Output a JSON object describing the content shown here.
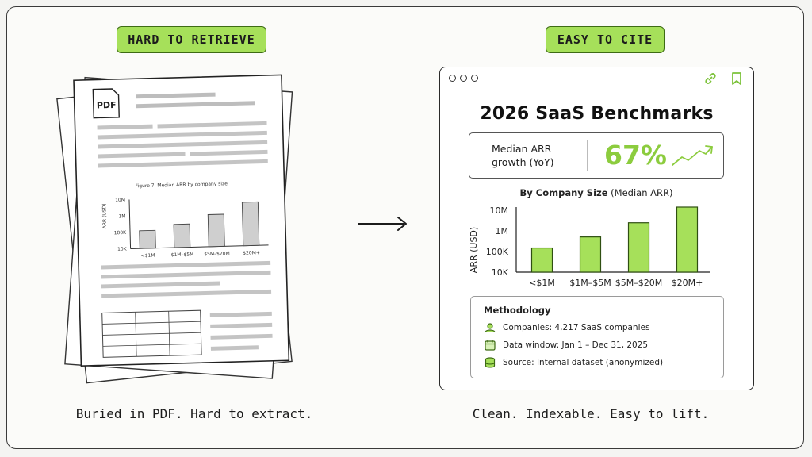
{
  "left": {
    "badge": "HARD TO RETRIEVE",
    "caption": "Buried in PDF. Hard to extract.",
    "pdf_label": "PDF",
    "figure": {
      "title": "Figure 7. Median ARR by company size",
      "ylabel": "ARR (USD)",
      "yticks": [
        "10M",
        "1M",
        "100K",
        "10K"
      ],
      "categories": [
        "<$1M",
        "$1M–$5M",
        "$5M–$20M",
        "$20M+"
      ]
    }
  },
  "right": {
    "badge": "EASY TO CITE",
    "caption": "Clean. Indexable. Easy to lift.",
    "title": "2026 SaaS Benchmarks",
    "kpi": {
      "label": "Median ARR growth (YoY)",
      "value": "67%"
    },
    "chart_subtitle_bold": "By Company Size",
    "chart_subtitle_rest": " (Median ARR)",
    "methodology": {
      "title": "Methodology",
      "rows": [
        {
          "icon": "user-icon",
          "text": "Companies: 4,217 SaaS companies"
        },
        {
          "icon": "calendar-icon",
          "text": "Data window: Jan 1 – Dec 31, 2025"
        },
        {
          "icon": "database-icon",
          "text": "Source: Internal dataset (anonymized)"
        }
      ]
    }
  },
  "colors": {
    "accent": "#a6e05a",
    "accent_dark": "#3d6b14",
    "value_green": "#8ccc3e"
  },
  "chart_data": [
    {
      "type": "bar",
      "title": "By Company Size (Median ARR)",
      "ylabel": "ARR (USD)",
      "yscale": "log",
      "ylim": [
        10000,
        10000000
      ],
      "yticks": [
        "10M",
        "1M",
        "100K",
        "10K"
      ],
      "categories": [
        "<$1M",
        "$1M–$5M",
        "$5M–$20M",
        "$20M+"
      ],
      "values": [
        130000,
        420000,
        1900000,
        10000000
      ]
    },
    {
      "type": "bar",
      "title": "Figure 7. Median ARR by company size",
      "ylabel": "ARR (USD)",
      "yscale": "log",
      "ylim": [
        10000,
        10000000
      ],
      "yticks": [
        "10M",
        "1M",
        "100K",
        "10K"
      ],
      "categories": [
        "<$1M",
        "$1M–$5M",
        "$5M–$20M",
        "$20M+"
      ],
      "values": [
        120000,
        260000,
        900000,
        4500000
      ]
    }
  ]
}
